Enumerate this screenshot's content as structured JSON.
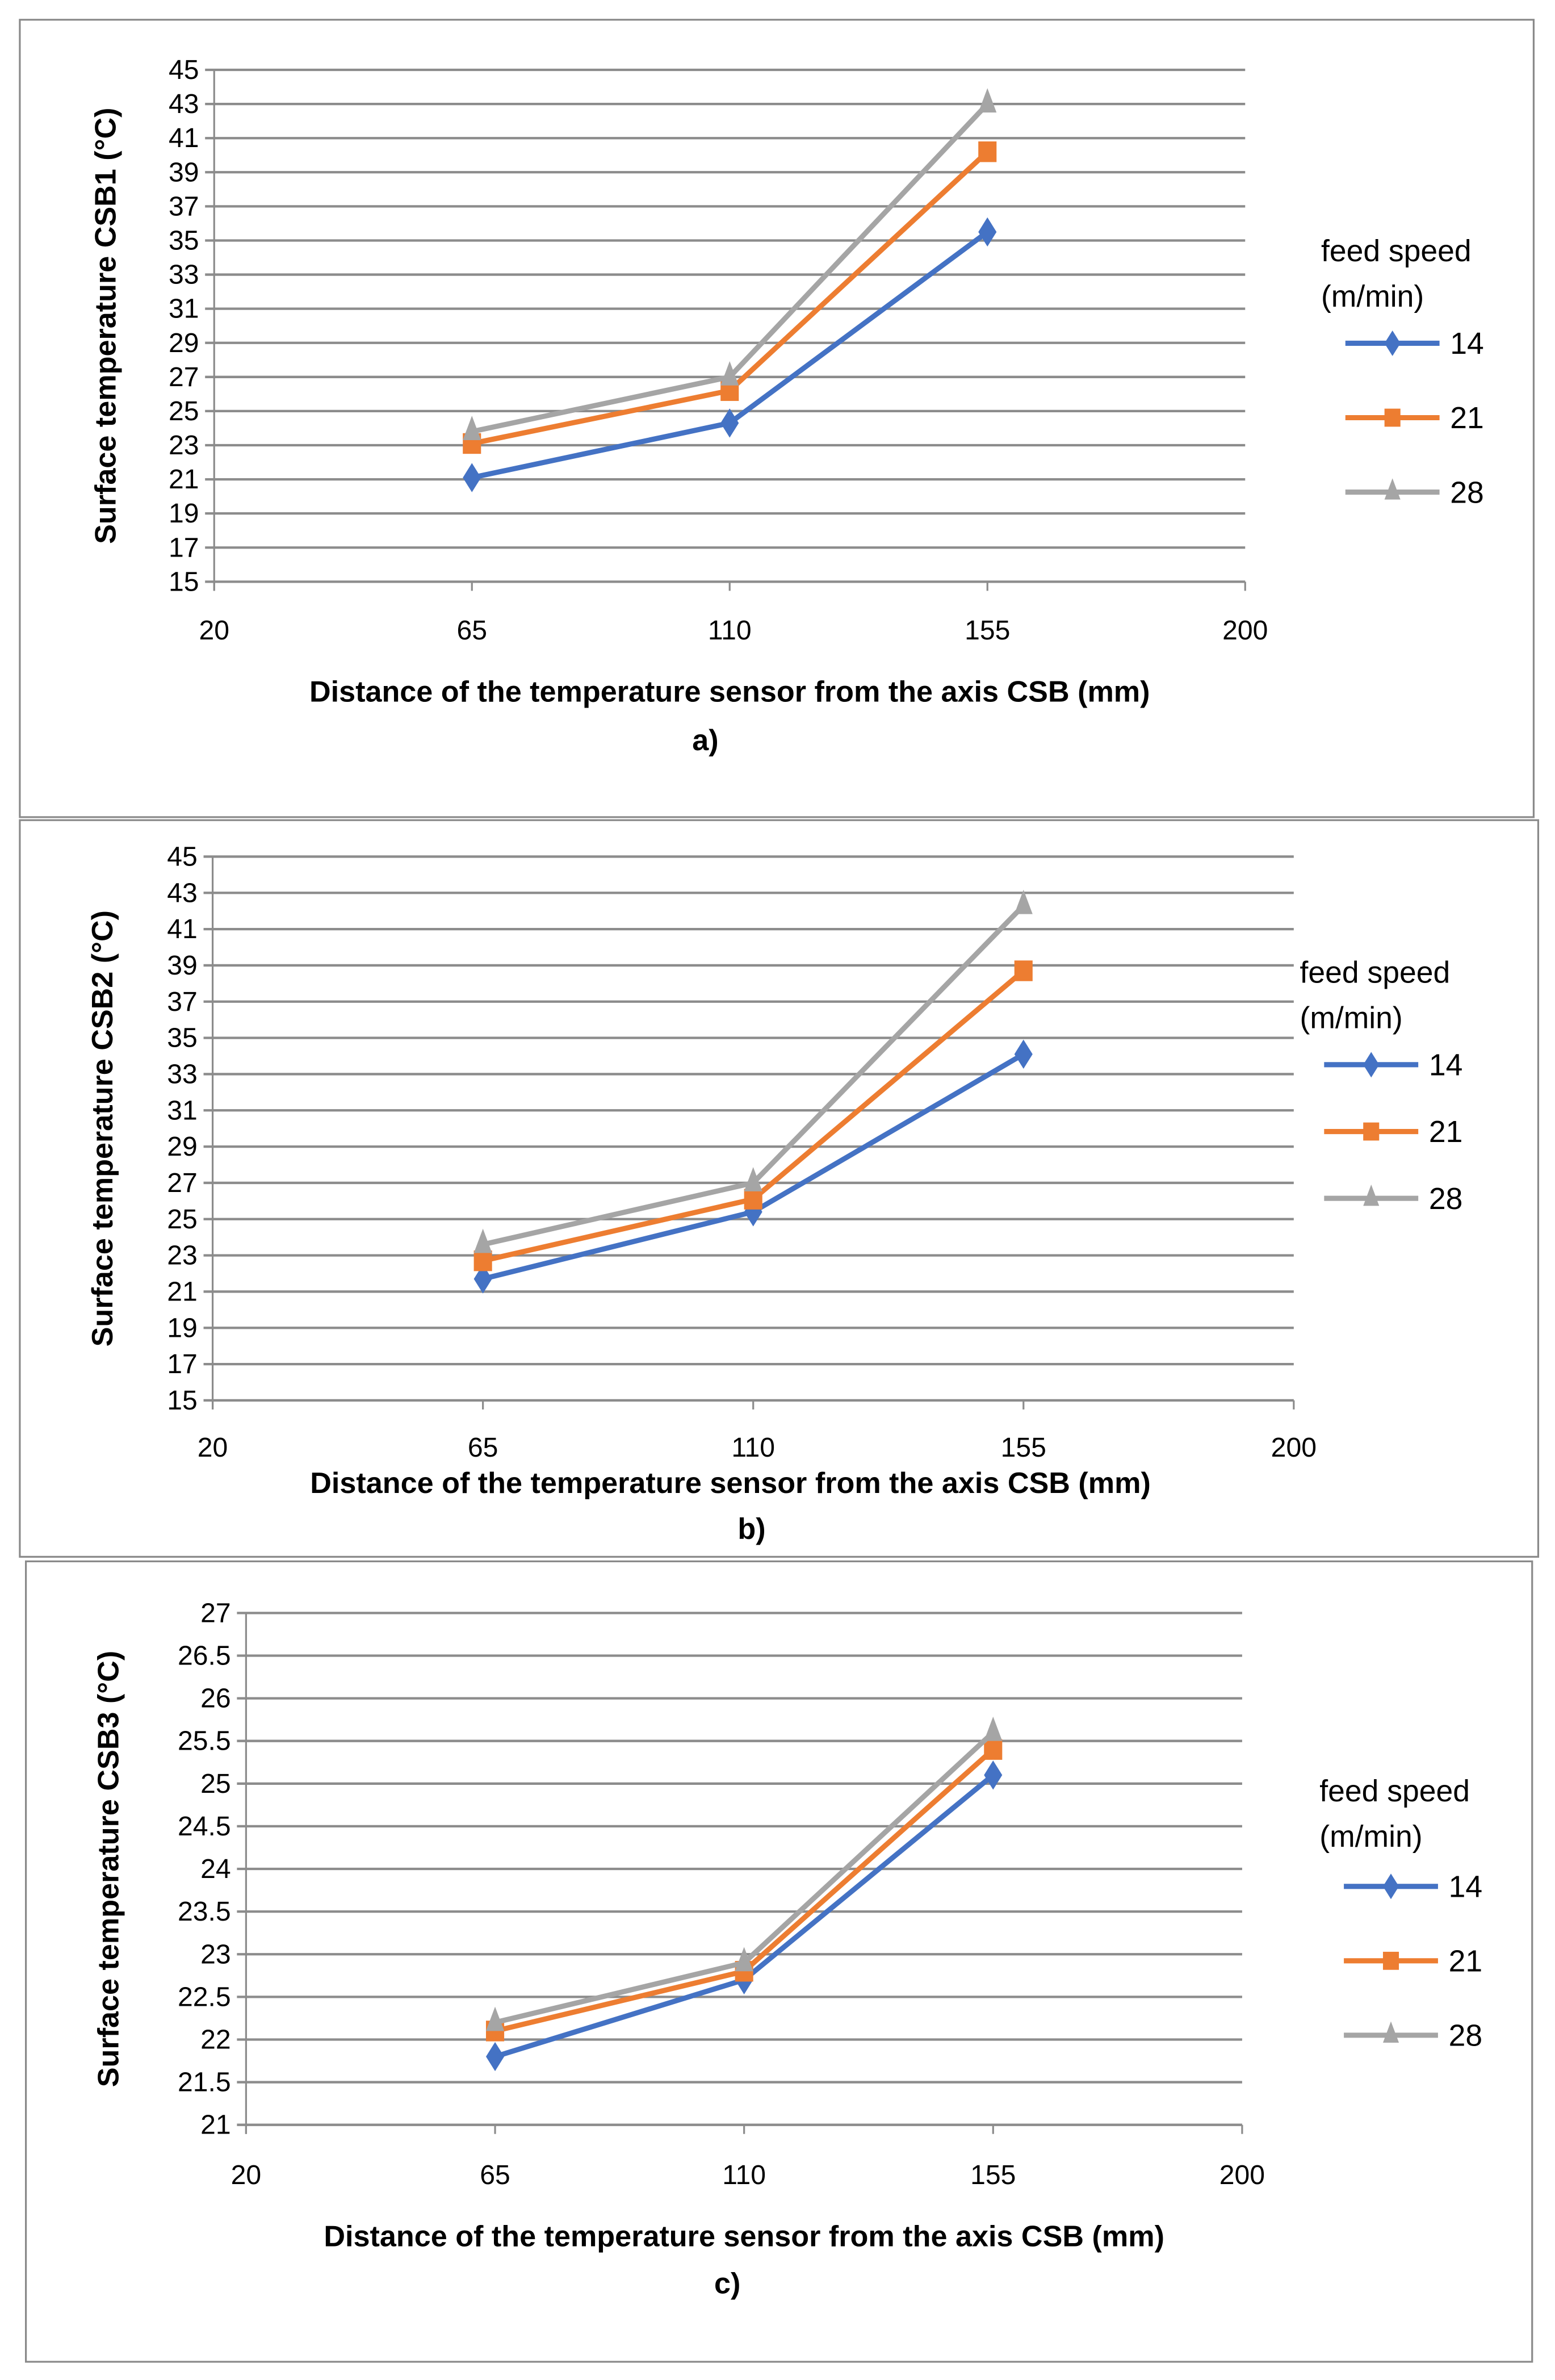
{
  "chart_data": [
    {
      "type": "line",
      "panel_label": "a)",
      "xlabel": "Distance of the temperature sensor from the axis CSB (mm)",
      "ylabel": "Surface temperature CSB1 (°C)",
      "xlim": [
        20,
        200
      ],
      "xticks": [
        20,
        65,
        110,
        155,
        200
      ],
      "ylim": [
        15,
        45
      ],
      "yticks": [
        15,
        17,
        19,
        21,
        23,
        25,
        27,
        29,
        31,
        33,
        35,
        37,
        39,
        41,
        43,
        45
      ],
      "grid": true,
      "legend_title": [
        "feed speed",
        "(m/min)"
      ],
      "legend_placement": "right",
      "x": [
        65,
        110,
        155
      ],
      "series": [
        {
          "name": "14",
          "values": [
            21.1,
            24.3,
            35.5
          ],
          "color": "#4472C4",
          "marker": "diamond"
        },
        {
          "name": "21",
          "values": [
            23.1,
            26.2,
            40.2
          ],
          "color": "#ED7D31",
          "marker": "square"
        },
        {
          "name": "28",
          "values": [
            23.8,
            27.0,
            43.0
          ],
          "color": "#A5A5A5",
          "marker": "triangle"
        }
      ]
    },
    {
      "type": "line",
      "panel_label": "b)",
      "xlabel": "Distance of the temperature sensor from the axis CSB (mm)",
      "ylabel": "Surface temperature CSB2 (°C)",
      "xlim": [
        20,
        200
      ],
      "xticks": [
        20,
        65,
        110,
        155,
        200
      ],
      "ylim": [
        15,
        45
      ],
      "yticks": [
        15,
        17,
        19,
        21,
        23,
        25,
        27,
        29,
        31,
        33,
        35,
        37,
        39,
        41,
        43,
        45
      ],
      "grid": true,
      "legend_title": [
        "feed speed",
        "(m/min)"
      ],
      "legend_placement": "right",
      "x": [
        65,
        110,
        155
      ],
      "series": [
        {
          "name": "14",
          "values": [
            21.7,
            25.4,
            34.1
          ],
          "color": "#4472C4",
          "marker": "diamond"
        },
        {
          "name": "21",
          "values": [
            22.7,
            26.1,
            38.7
          ],
          "color": "#ED7D31",
          "marker": "square"
        },
        {
          "name": "28",
          "values": [
            23.6,
            27.0,
            42.3
          ],
          "color": "#A5A5A5",
          "marker": "triangle"
        }
      ]
    },
    {
      "type": "line",
      "panel_label": "c)",
      "xlabel": "Distance of the temperature sensor from the axis CSB (mm)",
      "ylabel": "Surface temperature CSB3 (°C)",
      "xlim": [
        20,
        200
      ],
      "xticks": [
        20,
        65,
        110,
        155,
        200
      ],
      "ylim": [
        21,
        27
      ],
      "yticks": [
        "21",
        "21.5",
        "22",
        "22.5",
        "23",
        "23.5",
        "24",
        "24.5",
        "25",
        "25.5",
        "26",
        "26.5",
        "27"
      ],
      "grid": true,
      "legend_title": [
        "feed speed",
        "(m/min)"
      ],
      "legend_placement": "right",
      "x": [
        65,
        110,
        155
      ],
      "series": [
        {
          "name": "14",
          "values": [
            21.8,
            22.7,
            25.1
          ],
          "color": "#4472C4",
          "marker": "diamond"
        },
        {
          "name": "21",
          "values": [
            22.1,
            22.8,
            25.4
          ],
          "color": "#ED7D31",
          "marker": "square"
        },
        {
          "name": "28",
          "values": [
            22.2,
            22.9,
            25.6
          ],
          "color": "#A5A5A5",
          "marker": "triangle"
        }
      ]
    }
  ]
}
